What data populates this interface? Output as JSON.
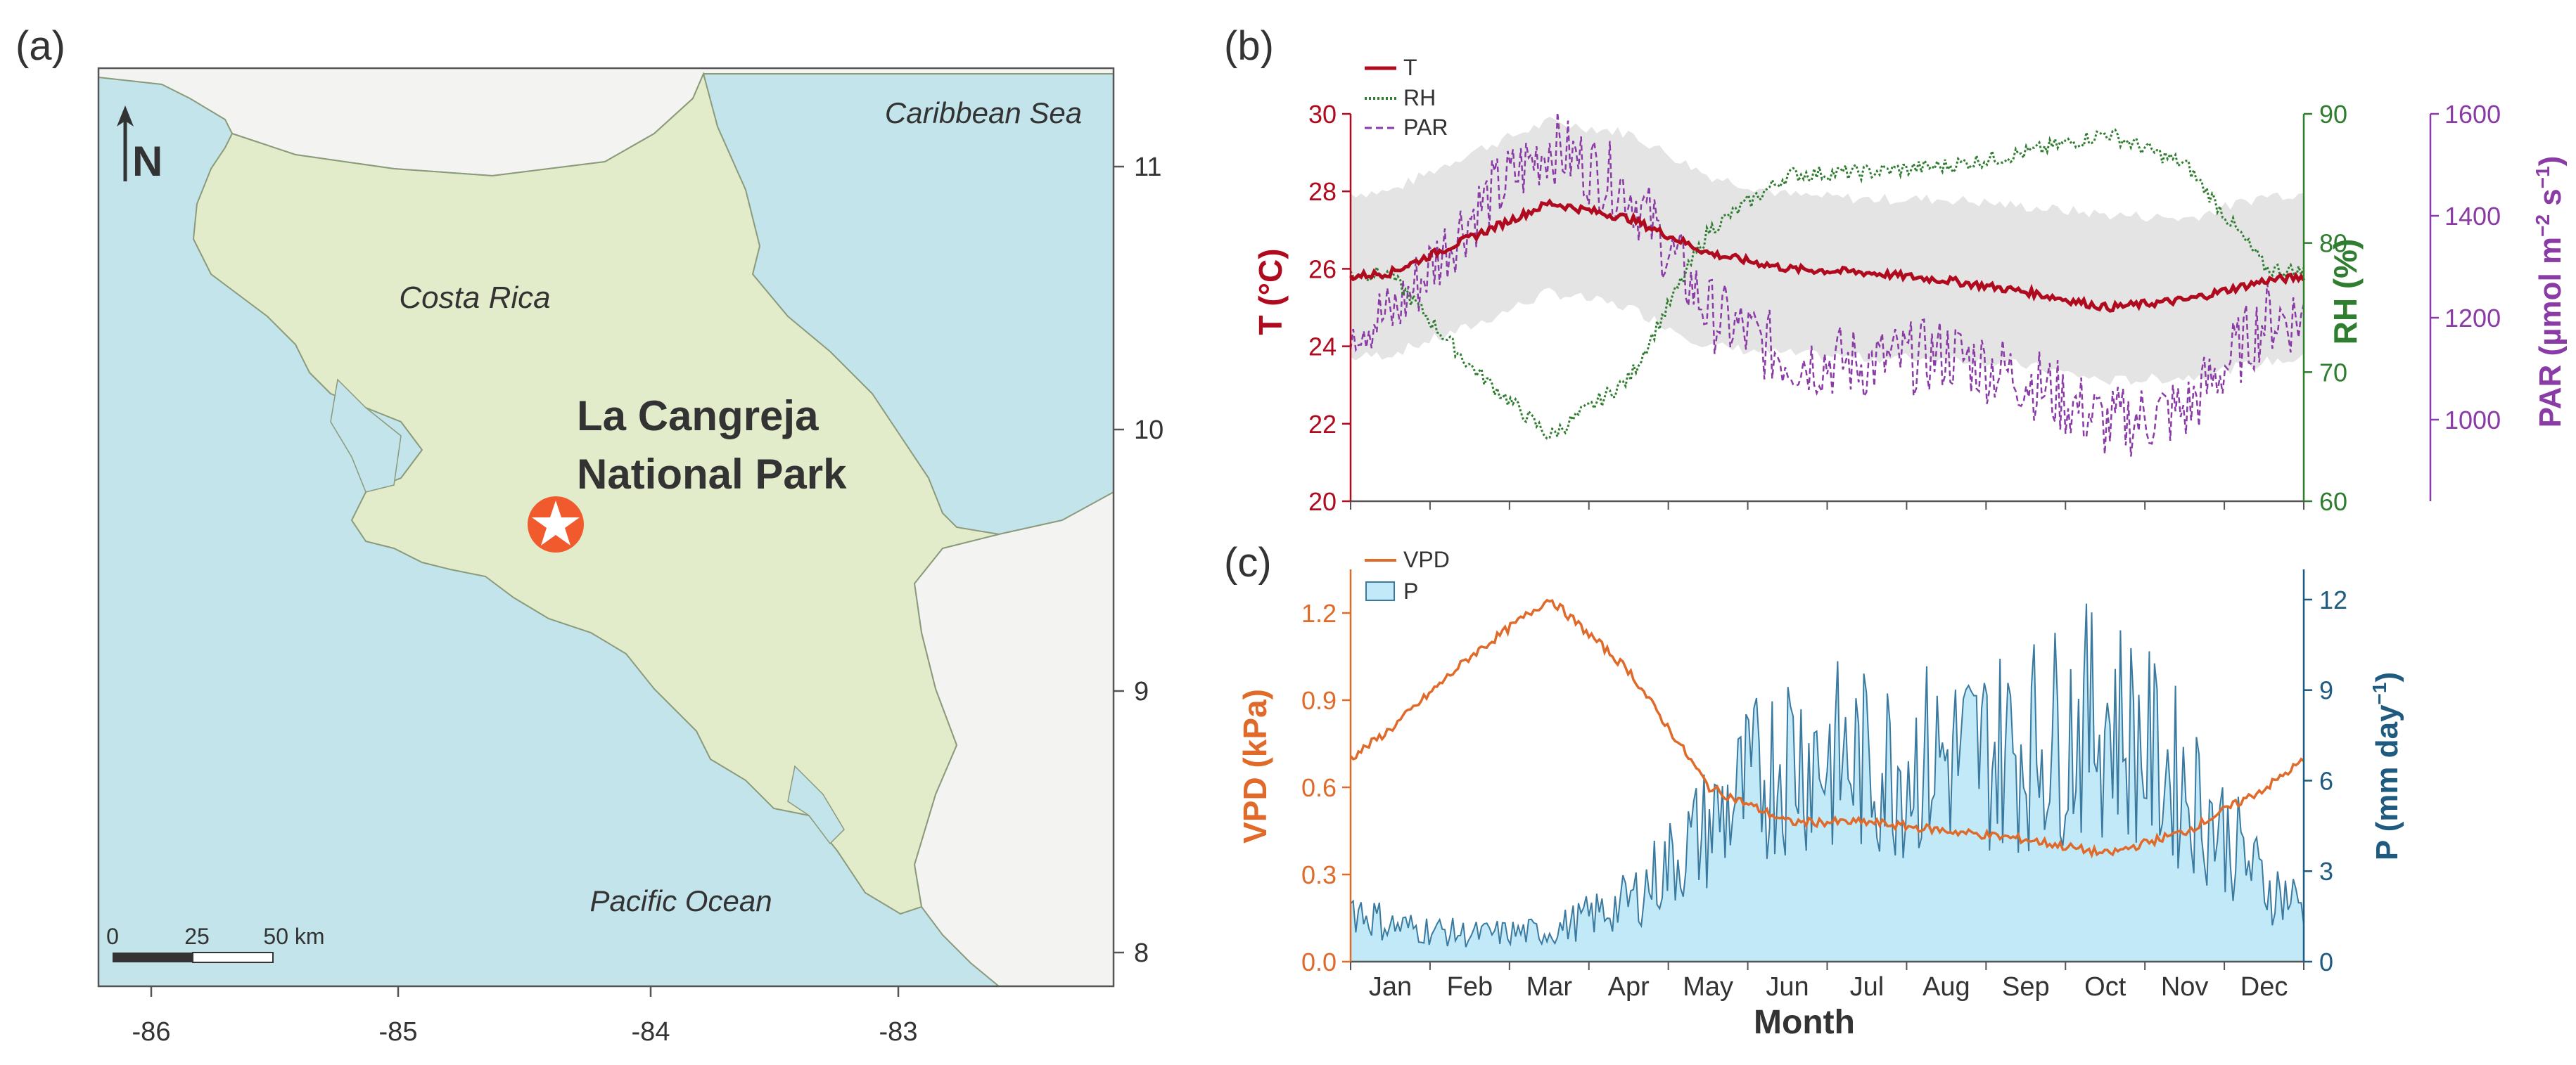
{
  "panel_labels": {
    "a": "(a)",
    "b": "(b)",
    "c": "(c)"
  },
  "colors": {
    "ocean": "#c3e4ea",
    "land": "#e3ecca",
    "neighbor": "#f3f4f2",
    "coast": "#8a9a7a",
    "marker": "#f15a2c",
    "temperature": "#b00a1f",
    "humidity": "#2f7d2f",
    "par": "#8a3ba5",
    "vpd": "#e06a2a",
    "precip_line": "#3a7aa0",
    "precip_fill": "#c2e9f7",
    "band": "#e4e4e4"
  },
  "map": {
    "labels": {
      "caribbean": "Caribbean Sea",
      "pacific": "Pacific Ocean",
      "costa_rica": "Costa Rica",
      "park_line1": "La Cangreja",
      "park_line2": "National Park"
    },
    "north_label": "N",
    "scale_bar": {
      "ticks": [
        "0",
        "25",
        "50 km"
      ]
    },
    "x_ticks": [
      "-86",
      "-85",
      "-84",
      "-83"
    ],
    "y_ticks": [
      "11",
      "10",
      "9",
      "8"
    ],
    "park_location": {
      "lon": -84.38,
      "lat": 9.62
    }
  },
  "chart_data": [
    {
      "panel": "(b)",
      "type": "line",
      "legend": [
        "T",
        "RH",
        "PAR"
      ],
      "x_categories": [
        "Jan",
        "Feb",
        "Mar",
        "Apr",
        "May",
        "Jun",
        "Jul",
        "Aug",
        "Sep",
        "Oct",
        "Nov",
        "Dec"
      ],
      "y_left": {
        "label": "T (°C)",
        "ticks": [
          "30",
          "28",
          "26",
          "24",
          "22",
          "20"
        ],
        "range": [
          20,
          30
        ]
      },
      "y_right1": {
        "label": "RH (%)",
        "ticks": [
          "90",
          "80",
          "70",
          "60"
        ],
        "range": [
          60,
          90
        ]
      },
      "y_right2": {
        "label_main": "PAR (µmol m",
        "label_sup1": "−2",
        "label_mid": " s",
        "label_sup2": "−1",
        "label_end": ")",
        "ticks": [
          "1600",
          "1400",
          "1200",
          "1000"
        ],
        "range": [
          840,
          1600
        ]
      },
      "series": [
        {
          "name": "T",
          "style": "solid",
          "monthly_mean": [
            25.9,
            26.8,
            27.7,
            27.3,
            26.4,
            26.0,
            25.9,
            25.7,
            25.4,
            25.0,
            25.2,
            25.7
          ]
        },
        {
          "name": "T range band",
          "upper": [
            28.0,
            29.0,
            29.8,
            29.5,
            28.4,
            27.9,
            27.8,
            27.8,
            27.6,
            27.4,
            27.3,
            27.9
          ],
          "lower": [
            23.8,
            24.5,
            25.4,
            25.0,
            24.0,
            23.8,
            23.7,
            23.7,
            23.5,
            23.1,
            23.2,
            23.6
          ]
        },
        {
          "name": "RH",
          "style": "dotted",
          "monthly_mean": [
            77.5,
            70.5,
            65.0,
            69.5,
            81.0,
            85.3,
            85.5,
            86.0,
            87.0,
            88.5,
            86.0,
            78.0
          ]
        },
        {
          "name": "PAR",
          "style": "dashed",
          "monthly_mean": [
            1200,
            1400,
            1540,
            1450,
            1210,
            1120,
            1110,
            1130,
            1080,
            990,
            1020,
            1200
          ]
        }
      ]
    },
    {
      "panel": "(c)",
      "type": "line+area",
      "legend": [
        "VPD",
        "P"
      ],
      "x_categories": [
        "Jan",
        "Feb",
        "Mar",
        "Apr",
        "May",
        "Jun",
        "Jul",
        "Aug",
        "Sep",
        "Oct",
        "Nov",
        "Dec"
      ],
      "xlabel": "Month",
      "y_left": {
        "label": "VPD (kPa)",
        "ticks": [
          "1.2",
          "0.9",
          "0.6",
          "0.3",
          "0.0"
        ],
        "range": [
          0,
          1.35
        ]
      },
      "y_right": {
        "label_main": "P (mm day",
        "label_sup": "−1",
        "label_end": ")",
        "ticks": [
          "12",
          "9",
          "6",
          "3",
          "0"
        ],
        "range": [
          0,
          13
        ]
      },
      "series": [
        {
          "name": "VPD",
          "style": "line",
          "monthly_mean": [
            0.8,
            1.05,
            1.25,
            1.0,
            0.6,
            0.48,
            0.48,
            0.45,
            0.42,
            0.37,
            0.45,
            0.6
          ]
        },
        {
          "name": "P",
          "style": "area",
          "monthly_mean": [
            1.2,
            0.9,
            1.0,
            2.0,
            4.5,
            7.0,
            6.5,
            6.8,
            7.2,
            8.2,
            5.8,
            2.5
          ]
        }
      ]
    }
  ]
}
